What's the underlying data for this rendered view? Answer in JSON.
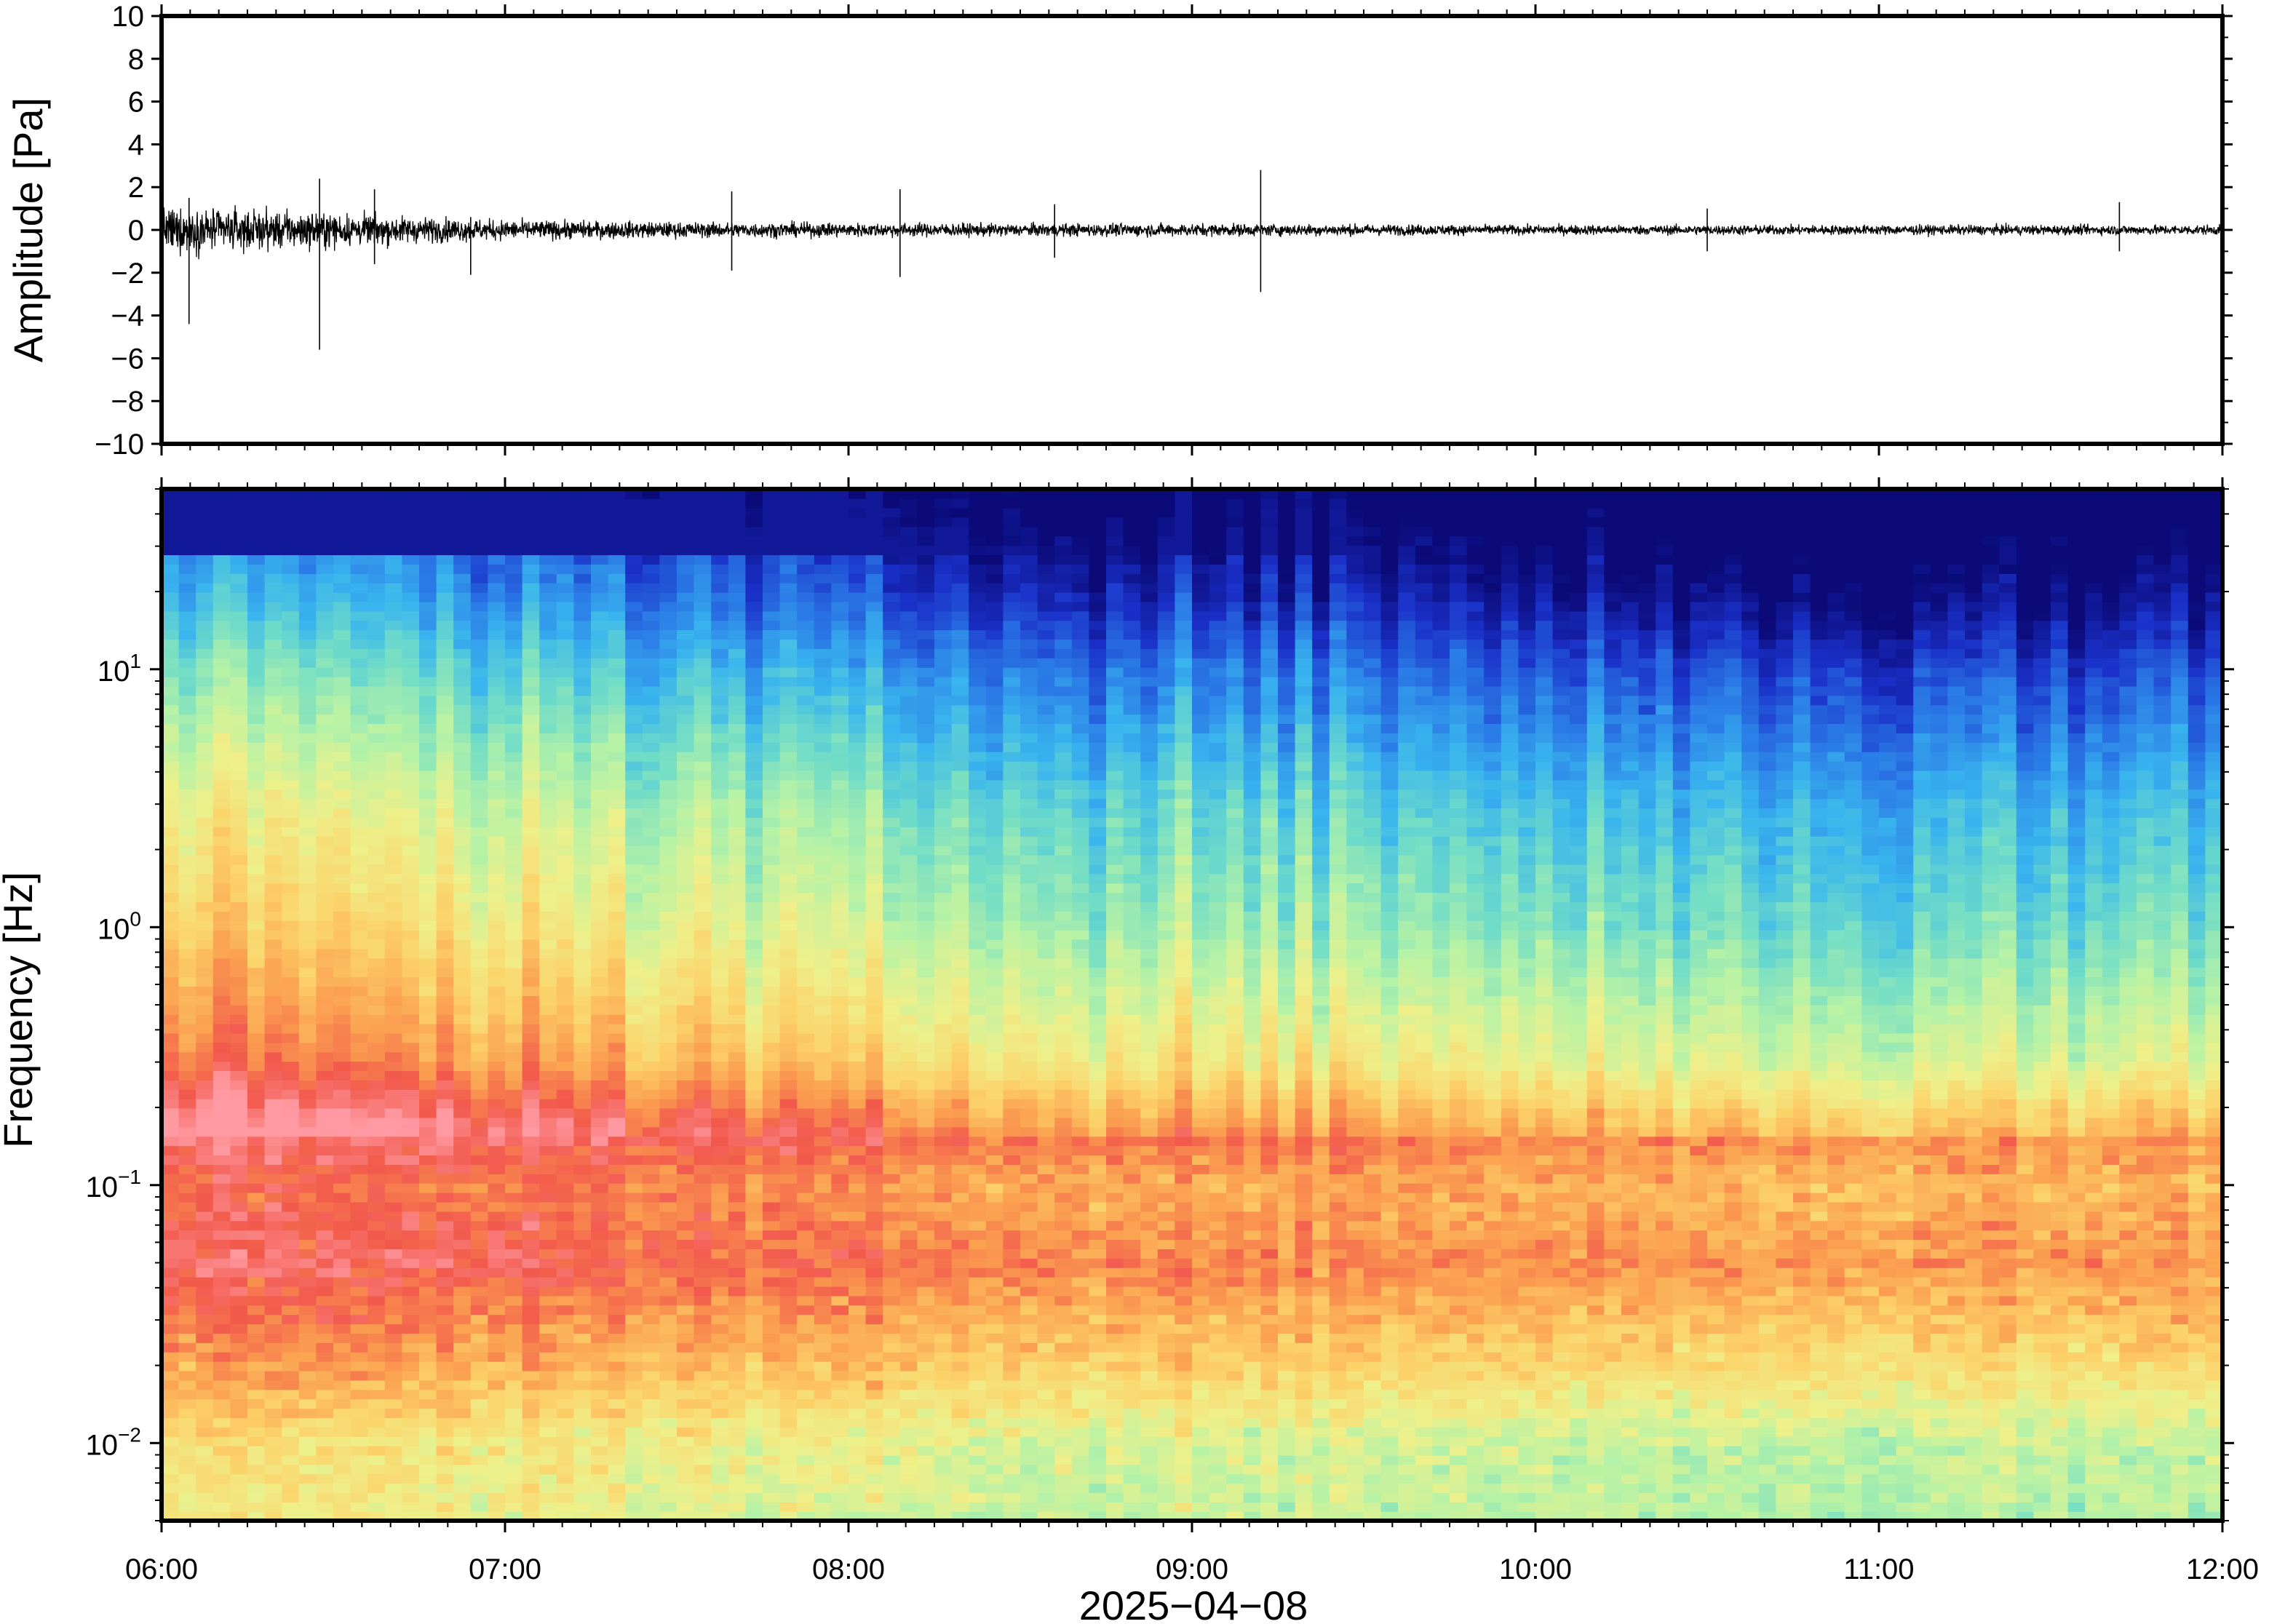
{
  "chart_data": [
    {
      "type": "line",
      "panel": "waveform",
      "ylabel": "Amplitude [Pa]",
      "ylim": [
        -10,
        10
      ],
      "yticks": [
        10,
        8,
        6,
        4,
        2,
        0,
        -2,
        -4,
        -6,
        -8,
        -10
      ],
      "ytick_labels": [
        "10",
        "8",
        "6",
        "4",
        "2",
        "0",
        "−2",
        "−4",
        "−6",
        "−8",
        "−10"
      ],
      "xlim": [
        "06:00",
        "12:00"
      ],
      "envelope": {
        "t_hours": [
          0.0,
          0.25,
          0.5,
          0.75,
          1.0,
          1.5,
          2.0,
          2.5,
          3.0,
          3.5,
          4.0,
          4.5,
          5.0,
          5.5,
          6.0
        ],
        "amplitude": [
          1.6,
          1.4,
          1.2,
          0.9,
          0.7,
          0.55,
          0.5,
          0.45,
          0.45,
          0.4,
          0.35,
          0.35,
          0.35,
          0.35,
          0.35
        ]
      },
      "spikes": [
        {
          "t_hours": 0.08,
          "max": 1.5,
          "min": -4.4
        },
        {
          "t_hours": 0.46,
          "max": 2.4,
          "min": -5.6
        },
        {
          "t_hours": 0.62,
          "max": 1.9,
          "min": -1.6
        },
        {
          "t_hours": 0.9,
          "max": 0.6,
          "min": -2.1
        },
        {
          "t_hours": 1.66,
          "max": 1.8,
          "min": -1.9
        },
        {
          "t_hours": 2.15,
          "max": 1.9,
          "min": -2.2
        },
        {
          "t_hours": 2.6,
          "max": 1.2,
          "min": -1.3
        },
        {
          "t_hours": 3.2,
          "max": 2.8,
          "min": -2.9
        },
        {
          "t_hours": 4.5,
          "max": 1.0,
          "min": -1.0
        },
        {
          "t_hours": 5.7,
          "max": 1.3,
          "min": -1.0
        }
      ]
    },
    {
      "type": "heatmap",
      "panel": "spectrogram",
      "ylabel": "Frequency [Hz]",
      "yscale": "log",
      "ylim": [
        0.005,
        50
      ],
      "yticks": [
        10,
        1,
        0.1,
        0.01
      ],
      "ytick_labels": [
        {
          "base": "10",
          "exp": "1"
        },
        {
          "base": "10",
          "exp": "0"
        },
        {
          "base": "10",
          "exp": "−1"
        },
        {
          "base": "10",
          "exp": "−2"
        }
      ],
      "colormap": [
        "#0b0a78",
        "#1a30c8",
        "#2a78e6",
        "#39b4ee",
        "#6fdcc8",
        "#b6f2a6",
        "#eef08a",
        "#fcd26a",
        "#fba050",
        "#f2594c",
        "#ff9aa2"
      ],
      "relative_power_by_band": {
        "freq_hz": [
          0.005,
          0.01,
          0.02,
          0.05,
          0.1,
          0.15,
          0.3,
          1,
          3,
          10,
          20,
          50
        ],
        "level": [
          0.55,
          0.58,
          0.72,
          0.86,
          0.8,
          0.88,
          0.68,
          0.52,
          0.42,
          0.25,
          0.12,
          0.0
        ]
      },
      "time_trend": {
        "t_hours": [
          0,
          1,
          2,
          3,
          4,
          5,
          6
        ],
        "offset": [
          0.12,
          0.08,
          0.0,
          -0.02,
          -0.05,
          -0.08,
          -0.06
        ]
      }
    }
  ],
  "xaxis": {
    "ticks": [
      "06:00",
      "07:00",
      "08:00",
      "09:00",
      "10:00",
      "11:00",
      "12:00"
    ],
    "date_label": "2025−04−08"
  }
}
